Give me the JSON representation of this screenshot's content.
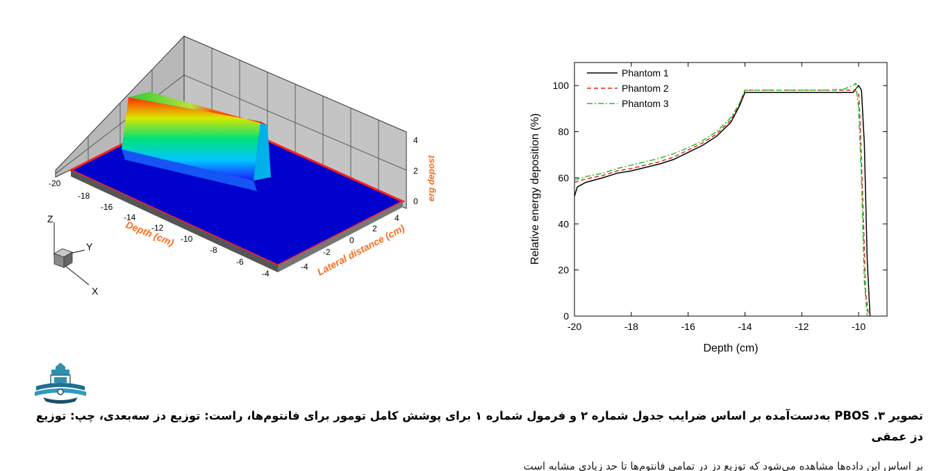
{
  "figure_left": {
    "axis_depth_label": "Depth (cm)",
    "axis_lateral_label": "Lateral distance (cm)",
    "axis_z_label": "erg depost",
    "depth_ticks": [
      "-20",
      "-18",
      "-16",
      "-14",
      "-12",
      "-10",
      "-8",
      "-6",
      "-4"
    ],
    "lateral_ticks": [
      "4",
      "2",
      "0",
      "-2",
      "-4"
    ],
    "z_ticks": [
      "4",
      "2",
      "0"
    ],
    "triad_labels": {
      "z": "Z",
      "y": "Y",
      "x": "X"
    },
    "colors": {
      "axis_label": "#ff6a1a",
      "floor": "#0000cc",
      "border": "#ff2020"
    }
  },
  "chart_data": {
    "type": "line",
    "xlabel": "Depth (cm)",
    "ylabel": "Relative energy deposition (%)",
    "xlim": [
      -20,
      -9
    ],
    "ylim": [
      0,
      110
    ],
    "x_ticks": [
      -20,
      -18,
      -16,
      -14,
      -12,
      -10
    ],
    "y_ticks": [
      0,
      20,
      40,
      60,
      80,
      100
    ],
    "legend_position": "top-left",
    "series": [
      {
        "name": "Phantom 1",
        "style": "solid",
        "color": "#000000",
        "x": [
          -20,
          -19.9,
          -19.6,
          -19,
          -18.5,
          -18,
          -17.5,
          -17,
          -16.5,
          -16,
          -15.5,
          -15,
          -14.5,
          -14.2,
          -14,
          -13.5,
          -13,
          -12.5,
          -12,
          -11.5,
          -11,
          -10.5,
          -10.2,
          -10,
          -9.9,
          -9.8,
          -9.7,
          -9.6
        ],
        "y": [
          52,
          56,
          58,
          60,
          62,
          63,
          64.5,
          66,
          68,
          71,
          74,
          78,
          84,
          91,
          97,
          97,
          97,
          97,
          97,
          97,
          97,
          97,
          97,
          100,
          98,
          75,
          25,
          0
        ]
      },
      {
        "name": "Phantom 2",
        "style": "dashed",
        "color": "#e0201c",
        "x": [
          -20,
          -19.6,
          -19,
          -18.5,
          -18,
          -17.5,
          -17,
          -16.5,
          -16,
          -15.5,
          -15,
          -14.5,
          -14.2,
          -14,
          -13.5,
          -13,
          -12.5,
          -12,
          -11.5,
          -11,
          -10.5,
          -10.2,
          -10,
          -9.95,
          -9.85,
          -9.75,
          -9.65
        ],
        "y": [
          58,
          59.5,
          61,
          63,
          64,
          65.5,
          67,
          69,
          72,
          75,
          79,
          85,
          92,
          98,
          98,
          98,
          98,
          98,
          98,
          98,
          98,
          98,
          97,
          85,
          50,
          10,
          0
        ]
      },
      {
        "name": "Phantom 3",
        "style": "dashdot",
        "color": "#22c022",
        "x": [
          -20,
          -19.6,
          -19,
          -18.5,
          -18,
          -17.5,
          -17,
          -16.5,
          -16,
          -15.5,
          -15,
          -14.5,
          -14.2,
          -14,
          -13.5,
          -13,
          -12.5,
          -12,
          -11.5,
          -11,
          -10.5,
          -10.2,
          -10.1,
          -10,
          -9.9,
          -9.8,
          -9.7
        ],
        "y": [
          59,
          60.5,
          62,
          64,
          65.5,
          67,
          68.5,
          70.5,
          73,
          76,
          80,
          86,
          92,
          98,
          98,
          98,
          98,
          98,
          98,
          98,
          98.5,
          100,
          101,
          90,
          60,
          15,
          0
        ]
      }
    ]
  },
  "caption": {
    "label": "تصویر ۳.",
    "text": "PBOS به‌دست‌آمده بر اساس ضرایب جدول شماره ۲ و فرمول شماره ۱ برای پوشش کامل تومور برای فانتوم‌ها، راست: توزیع دز سه‌بعدی، چپ: توزیع دز عمقی"
  },
  "body_fragment": "بر اساس این داده‌ها مشاهده می‌شود که توزیع دز در تمامی فانتوم‌ها تا حد زیادی مشابه است"
}
